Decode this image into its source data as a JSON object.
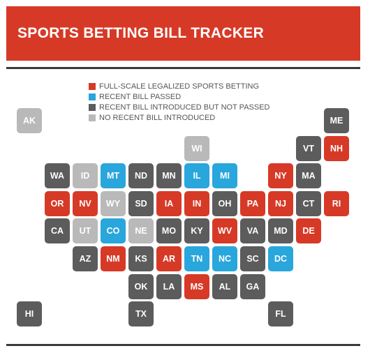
{
  "title": "SPORTS BETTING BILL TRACKER",
  "colors": {
    "banner": "#d63a27",
    "legalized": "#d63a27",
    "passed": "#29a6dc",
    "introduced": "#5c5c5c",
    "none": "#b9b9b9"
  },
  "legend": [
    {
      "status": "legalized",
      "label": "FULL-SCALE LEGALIZED SPORTS BETTING"
    },
    {
      "status": "passed",
      "label": "RECENT BILL PASSED"
    },
    {
      "status": "introduced",
      "label": "RECENT BILL INTRODUCED BUT NOT PASSED"
    },
    {
      "status": "none",
      "label": "NO RECENT BILL INTRODUCED"
    }
  ],
  "states": [
    {
      "abbr": "AK",
      "col": 0,
      "row": 0,
      "status": "none"
    },
    {
      "abbr": "ME",
      "col": 11,
      "row": 0,
      "status": "introduced"
    },
    {
      "abbr": "WI",
      "col": 6,
      "row": 1,
      "status": "none"
    },
    {
      "abbr": "VT",
      "col": 10,
      "row": 1,
      "status": "introduced"
    },
    {
      "abbr": "NH",
      "col": 11,
      "row": 1,
      "status": "legalized"
    },
    {
      "abbr": "WA",
      "col": 1,
      "row": 2,
      "status": "introduced"
    },
    {
      "abbr": "ID",
      "col": 2,
      "row": 2,
      "status": "none"
    },
    {
      "abbr": "MT",
      "col": 3,
      "row": 2,
      "status": "passed"
    },
    {
      "abbr": "ND",
      "col": 4,
      "row": 2,
      "status": "introduced"
    },
    {
      "abbr": "MN",
      "col": 5,
      "row": 2,
      "status": "introduced"
    },
    {
      "abbr": "IL",
      "col": 6,
      "row": 2,
      "status": "passed"
    },
    {
      "abbr": "MI",
      "col": 7,
      "row": 2,
      "status": "passed"
    },
    {
      "abbr": "NY",
      "col": 9,
      "row": 2,
      "status": "legalized"
    },
    {
      "abbr": "MA",
      "col": 10,
      "row": 2,
      "status": "introduced"
    },
    {
      "abbr": "OR",
      "col": 1,
      "row": 3,
      "status": "legalized"
    },
    {
      "abbr": "NV",
      "col": 2,
      "row": 3,
      "status": "legalized"
    },
    {
      "abbr": "WY",
      "col": 3,
      "row": 3,
      "status": "none"
    },
    {
      "abbr": "SD",
      "col": 4,
      "row": 3,
      "status": "introduced"
    },
    {
      "abbr": "IA",
      "col": 5,
      "row": 3,
      "status": "legalized"
    },
    {
      "abbr": "IN",
      "col": 6,
      "row": 3,
      "status": "legalized"
    },
    {
      "abbr": "OH",
      "col": 7,
      "row": 3,
      "status": "introduced"
    },
    {
      "abbr": "PA",
      "col": 8,
      "row": 3,
      "status": "legalized"
    },
    {
      "abbr": "NJ",
      "col": 9,
      "row": 3,
      "status": "legalized"
    },
    {
      "abbr": "CT",
      "col": 10,
      "row": 3,
      "status": "introduced"
    },
    {
      "abbr": "RI",
      "col": 11,
      "row": 3,
      "status": "legalized"
    },
    {
      "abbr": "CA",
      "col": 1,
      "row": 4,
      "status": "introduced"
    },
    {
      "abbr": "UT",
      "col": 2,
      "row": 4,
      "status": "none"
    },
    {
      "abbr": "CO",
      "col": 3,
      "row": 4,
      "status": "passed"
    },
    {
      "abbr": "NE",
      "col": 4,
      "row": 4,
      "status": "none"
    },
    {
      "abbr": "MO",
      "col": 5,
      "row": 4,
      "status": "introduced"
    },
    {
      "abbr": "KY",
      "col": 6,
      "row": 4,
      "status": "introduced"
    },
    {
      "abbr": "WV",
      "col": 7,
      "row": 4,
      "status": "legalized"
    },
    {
      "abbr": "VA",
      "col": 8,
      "row": 4,
      "status": "introduced"
    },
    {
      "abbr": "MD",
      "col": 9,
      "row": 4,
      "status": "introduced"
    },
    {
      "abbr": "DE",
      "col": 10,
      "row": 4,
      "status": "legalized"
    },
    {
      "abbr": "AZ",
      "col": 2,
      "row": 5,
      "status": "introduced"
    },
    {
      "abbr": "NM",
      "col": 3,
      "row": 5,
      "status": "legalized"
    },
    {
      "abbr": "KS",
      "col": 4,
      "row": 5,
      "status": "introduced"
    },
    {
      "abbr": "AR",
      "col": 5,
      "row": 5,
      "status": "legalized"
    },
    {
      "abbr": "TN",
      "col": 6,
      "row": 5,
      "status": "passed"
    },
    {
      "abbr": "NC",
      "col": 7,
      "row": 5,
      "status": "passed"
    },
    {
      "abbr": "SC",
      "col": 8,
      "row": 5,
      "status": "introduced"
    },
    {
      "abbr": "DC",
      "col": 9,
      "row": 5,
      "status": "passed"
    },
    {
      "abbr": "OK",
      "col": 4,
      "row": 6,
      "status": "introduced"
    },
    {
      "abbr": "LA",
      "col": 5,
      "row": 6,
      "status": "introduced"
    },
    {
      "abbr": "MS",
      "col": 6,
      "row": 6,
      "status": "legalized"
    },
    {
      "abbr": "AL",
      "col": 7,
      "row": 6,
      "status": "introduced"
    },
    {
      "abbr": "GA",
      "col": 8,
      "row": 6,
      "status": "introduced"
    },
    {
      "abbr": "HI",
      "col": 0,
      "row": 7,
      "status": "introduced"
    },
    {
      "abbr": "TX",
      "col": 4,
      "row": 7,
      "status": "introduced"
    },
    {
      "abbr": "FL",
      "col": 9,
      "row": 7,
      "status": "introduced"
    }
  ]
}
